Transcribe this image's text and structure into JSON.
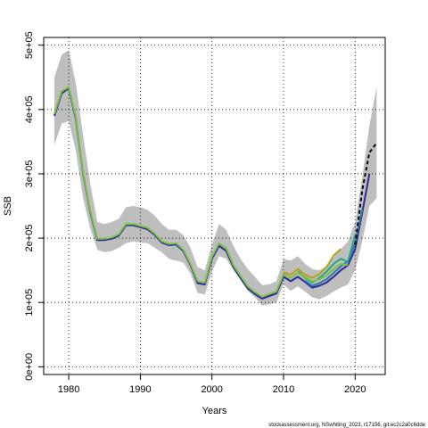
{
  "footer": "stockassessment.org, NSwhiting_2023, r17156, git:ec2c2a0c6dde",
  "chart_data": {
    "type": "line",
    "title": "",
    "xlabel": "Years",
    "ylabel": "SSB",
    "xlim": [
      1976.5,
      2024.2
    ],
    "ylim": [
      -12000,
      512000
    ],
    "xticks": [
      1980,
      1990,
      2000,
      2010,
      2020
    ],
    "yticks": [
      0,
      100000,
      200000,
      300000,
      400000,
      500000
    ],
    "ytick_labels": [
      "0e+00",
      "1e+05",
      "2e+05",
      "3e+05",
      "4e+05",
      "5e+05"
    ],
    "grid": "dotted",
    "legend": "none",
    "confidence_band": {
      "color": "#bebebe",
      "x": [
        1978,
        1979,
        1980,
        1981,
        1982,
        1983,
        1984,
        1985,
        1986,
        1987,
        1988,
        1989,
        1990,
        1991,
        1992,
        1993,
        1994,
        1995,
        1996,
        1997,
        1998,
        1999,
        2000,
        2001,
        2002,
        2003,
        2004,
        2005,
        2006,
        2007,
        2008,
        2009,
        2010,
        2011,
        2012,
        2013,
        2014,
        2015,
        2016,
        2017,
        2018,
        2019,
        2020,
        2021,
        2022,
        2023
      ],
      "upper": [
        450000,
        485000,
        492000,
        440000,
        360000,
        285000,
        225000,
        222000,
        225000,
        230000,
        248000,
        250000,
        248000,
        244000,
        235000,
        222000,
        213000,
        213000,
        205000,
        185000,
        155000,
        150000,
        190000,
        222000,
        213000,
        188000,
        168000,
        152000,
        140000,
        127000,
        128000,
        133000,
        168000,
        165000,
        172000,
        160000,
        152000,
        150000,
        157000,
        170000,
        183000,
        195000,
        225000,
        295000,
        375000,
        435000
      ],
      "lower": [
        345000,
        378000,
        382000,
        335000,
        262000,
        215000,
        182000,
        178000,
        180000,
        185000,
        192000,
        195000,
        193000,
        192000,
        185000,
        178000,
        168000,
        165000,
        162000,
        145000,
        115000,
        112000,
        148000,
        172000,
        168000,
        150000,
        135000,
        118000,
        108000,
        95000,
        97000,
        100000,
        128000,
        118000,
        125000,
        117000,
        108000,
        105000,
        110000,
        117000,
        123000,
        128000,
        150000,
        195000,
        250000,
        262000
      ]
    },
    "series": [
      {
        "color": "#2a2a9a",
        "x": [
          1978,
          1979,
          1980,
          1981,
          1982,
          1983,
          1984,
          1985,
          1986,
          1987,
          1988,
          1989,
          1990,
          1991,
          1992,
          1993,
          1994,
          1995,
          1996,
          1997,
          1998,
          1999,
          2000,
          2001,
          2002,
          2003,
          2004,
          2005,
          2006,
          2007,
          2008,
          2009,
          2010,
          2011,
          2012,
          2013,
          2014,
          2015,
          2016,
          2017,
          2018,
          2019,
          2020,
          2021,
          2022
        ],
        "values": [
          390000,
          425000,
          433000,
          385000,
          300000,
          240000,
          197000,
          197000,
          199000,
          204000,
          220000,
          220000,
          217000,
          214000,
          205000,
          193000,
          189000,
          190000,
          180000,
          158000,
          130000,
          128000,
          168000,
          188000,
          180000,
          155000,
          138000,
          122000,
          113000,
          106000,
          110000,
          114000,
          140000,
          133000,
          140000,
          132000,
          123000,
          126000,
          131000,
          140000,
          150000,
          158000,
          183000,
          240000,
          300000
        ]
      },
      {
        "color": "#2f79a8",
        "x": [
          2013,
          2014,
          2015,
          2016,
          2017,
          2018,
          2019,
          2020,
          2021
        ],
        "values": [
          134000,
          126000,
          130000,
          136000,
          146000,
          156000,
          164000,
          192000,
          245000
        ]
      },
      {
        "color": "#22a884",
        "x": [
          2012,
          2013,
          2014,
          2015,
          2016,
          2017,
          2018,
          2019,
          2020
        ],
        "values": [
          148000,
          138000,
          131000,
          138000,
          148000,
          160000,
          168000,
          163000,
          205000
        ]
      },
      {
        "color": "#7ac142",
        "x": [
          1978,
          1979,
          1980,
          1981,
          1982,
          1983,
          1984,
          1985,
          1986,
          1987,
          1988,
          1989,
          1990,
          1991,
          1992,
          1993,
          1994,
          1995,
          1996,
          1997,
          1998,
          1999,
          2000,
          2001,
          2002,
          2003,
          2004,
          2005,
          2006,
          2007,
          2008,
          2009,
          2010,
          2011,
          2012,
          2013,
          2014,
          2015,
          2016,
          2017,
          2018,
          2019
        ],
        "values": [
          393000,
          428000,
          435000,
          388000,
          302000,
          242000,
          199000,
          199000,
          201000,
          206000,
          222000,
          222000,
          219000,
          216000,
          207000,
          195000,
          191000,
          192000,
          182000,
          160000,
          133000,
          131000,
          171000,
          192000,
          184000,
          158000,
          141000,
          125000,
          116000,
          109000,
          113000,
          117000,
          144000,
          138000,
          146000,
          139000,
          133000,
          136000,
          142000,
          152000,
          160000,
          158000
        ]
      },
      {
        "color": "#b5a021",
        "x": [
          2010,
          2011,
          2012,
          2013,
          2014,
          2015,
          2016,
          2017,
          2018
        ],
        "values": [
          147000,
          143000,
          152000,
          143000,
          138000,
          144000,
          155000,
          173000,
          183000
        ]
      }
    ],
    "projection": {
      "color": "#000000",
      "style": "dashed",
      "x": [
        2020,
        2021,
        2022,
        2023
      ],
      "values": [
        190000,
        275000,
        333000,
        348000
      ]
    }
  }
}
